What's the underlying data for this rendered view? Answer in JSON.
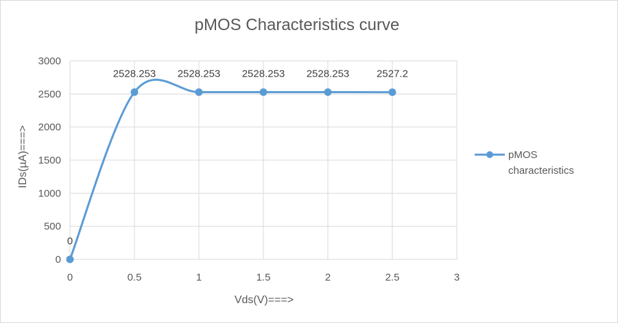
{
  "chart_data": {
    "type": "scatter",
    "title": "pMOS Characteristics curve",
    "xlabel": "Vds(V)===>",
    "ylabel": "IDs(µA)===>",
    "xlim": [
      0,
      3
    ],
    "ylim": [
      0,
      3000
    ],
    "x_ticks": [
      "0",
      "0.5",
      "1",
      "1.5",
      "2",
      "2.5",
      "3"
    ],
    "y_ticks": [
      "0",
      "500",
      "1000",
      "1500",
      "2000",
      "2500",
      "3000"
    ],
    "grid": true,
    "smooth": true,
    "legend_position": "right",
    "series": [
      {
        "name": "pMOS characteristics",
        "color": "#5b9bd5",
        "x": [
          0,
          0.5,
          1,
          1.5,
          2,
          2.5
        ],
        "y": [
          0,
          2528.253,
          2528.253,
          2528.253,
          2528.253,
          2527.2
        ],
        "data_labels": [
          "0",
          "2528.253",
          "2528.253",
          "2528.253",
          "2528.253",
          "2527.2"
        ]
      }
    ]
  }
}
